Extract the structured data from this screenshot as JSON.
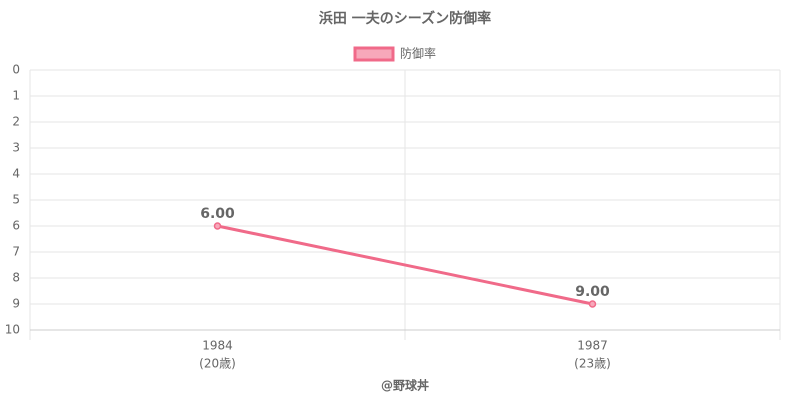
{
  "chart_data": {
    "type": "line",
    "title": "浜田 一夫のシーズン防御率",
    "categories": [
      "1984",
      "1987"
    ],
    "category_sublabels": [
      "(20歳)",
      "(23歳)"
    ],
    "series": [
      {
        "name": "防御率",
        "color": "#f06a89",
        "fill": "#f7a8ba",
        "values": [
          6,
          9
        ],
        "value_labels": [
          "6.00",
          "9.00"
        ]
      }
    ],
    "ylim": [
      0,
      10
    ],
    "yticks": [
      0,
      1,
      2,
      3,
      4,
      5,
      6,
      7,
      8,
      9,
      10
    ],
    "y_reversed": true,
    "grid": true,
    "legend": "top",
    "credit": "@野球丼"
  }
}
